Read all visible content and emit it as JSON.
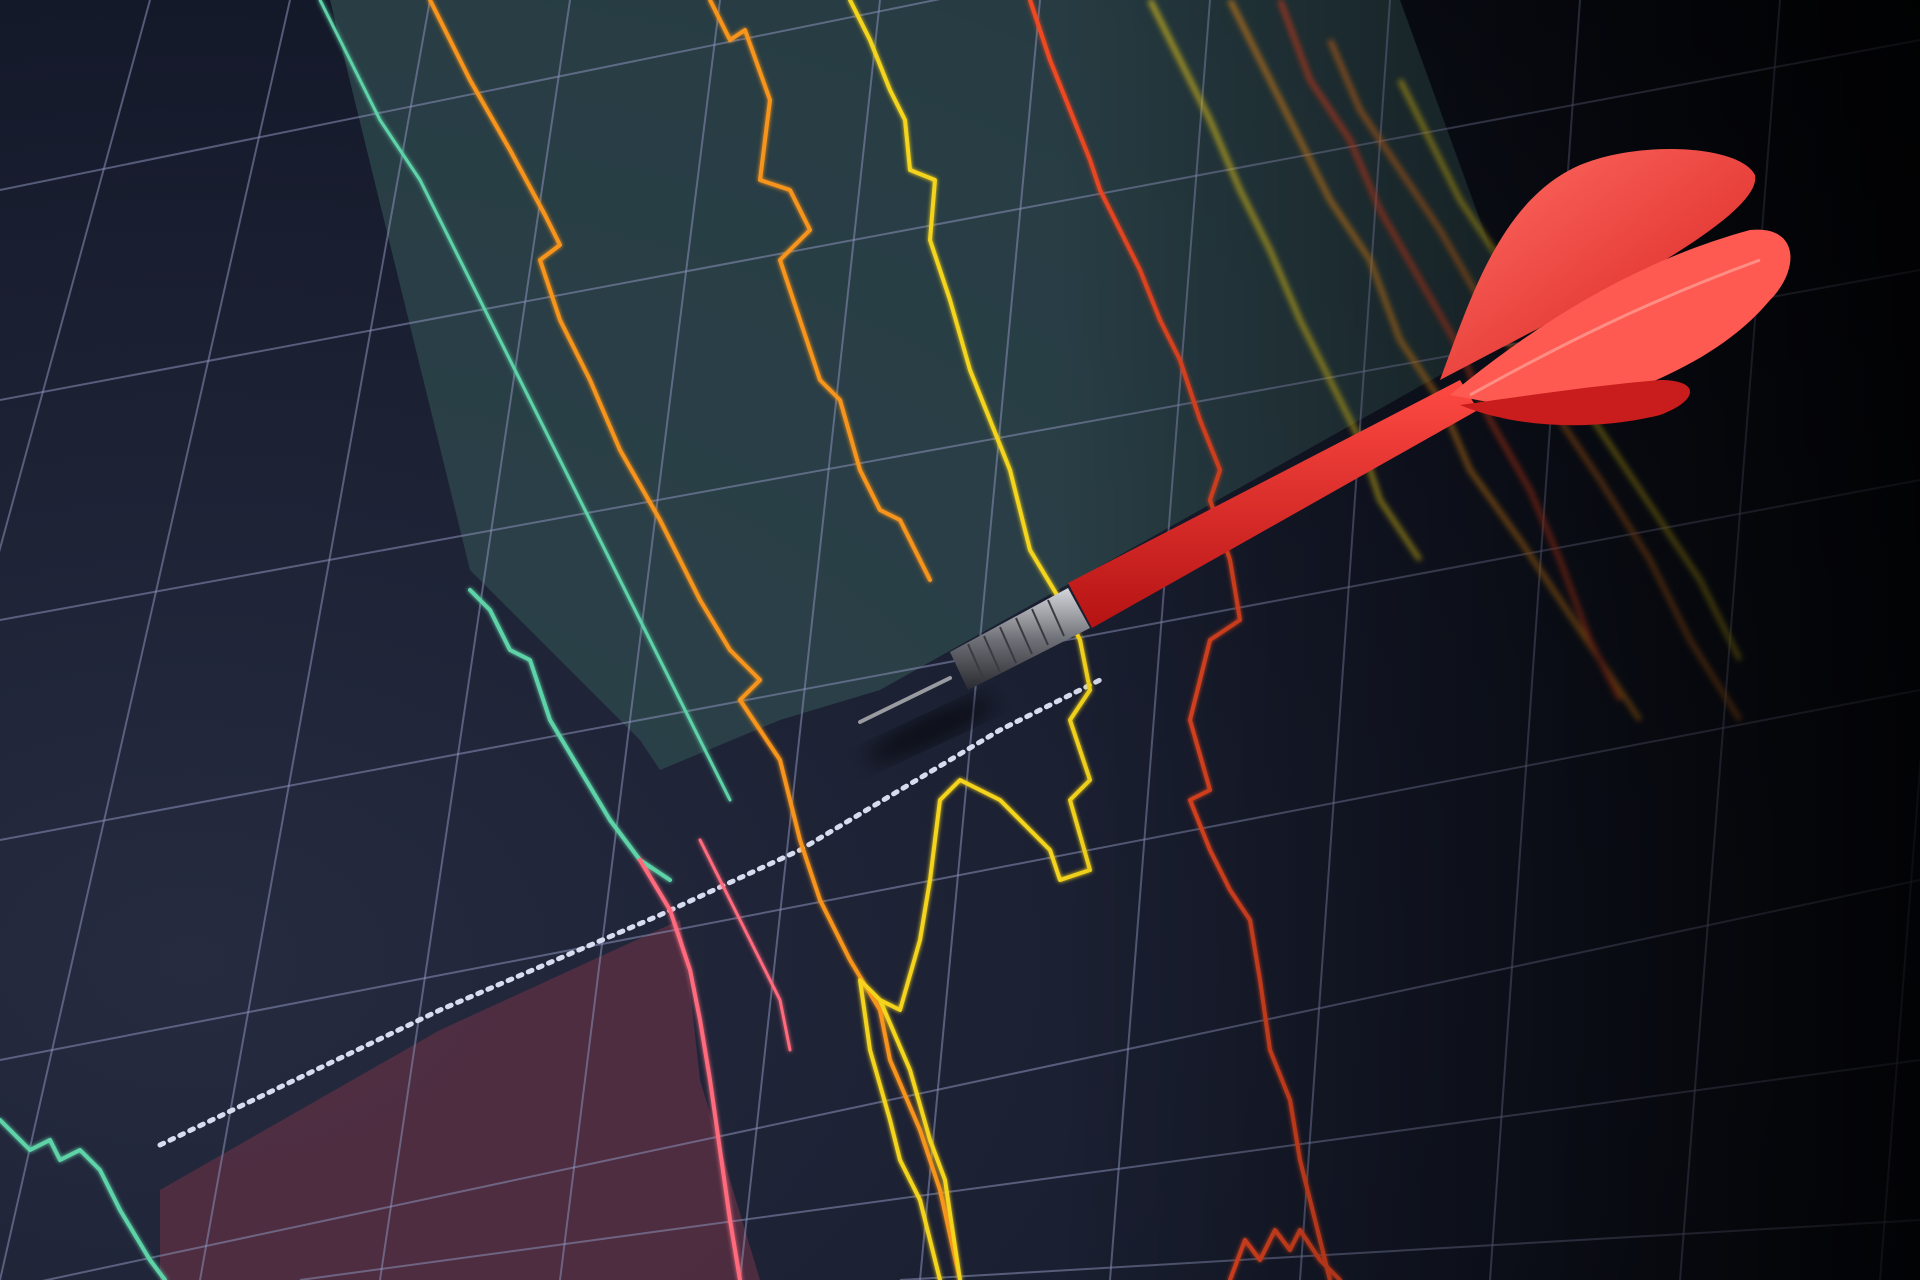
{
  "scene": {
    "subject": "dart",
    "background": "perspective-chart-grid"
  },
  "colors": {
    "background_near": "#262b40",
    "background_far": "#05070d",
    "grid": "#8a90b8",
    "zone_teal": "#2f4a4e",
    "zone_teal_edge": "#5fd3a8",
    "zone_red": "#5a2f44",
    "line_orange": "#f7941d",
    "line_yellow": "#f4d41a",
    "line_red": "#f04a23",
    "line_pink": "#ff6b7d",
    "line_green": "#5fd3a8",
    "dotted_level": "#d8dcef",
    "dart_red": "#e62a2a",
    "dart_flight": "#ff5a52",
    "dart_barrel": "#8d8f96"
  },
  "icons": {
    "dart": "dart-icon"
  }
}
